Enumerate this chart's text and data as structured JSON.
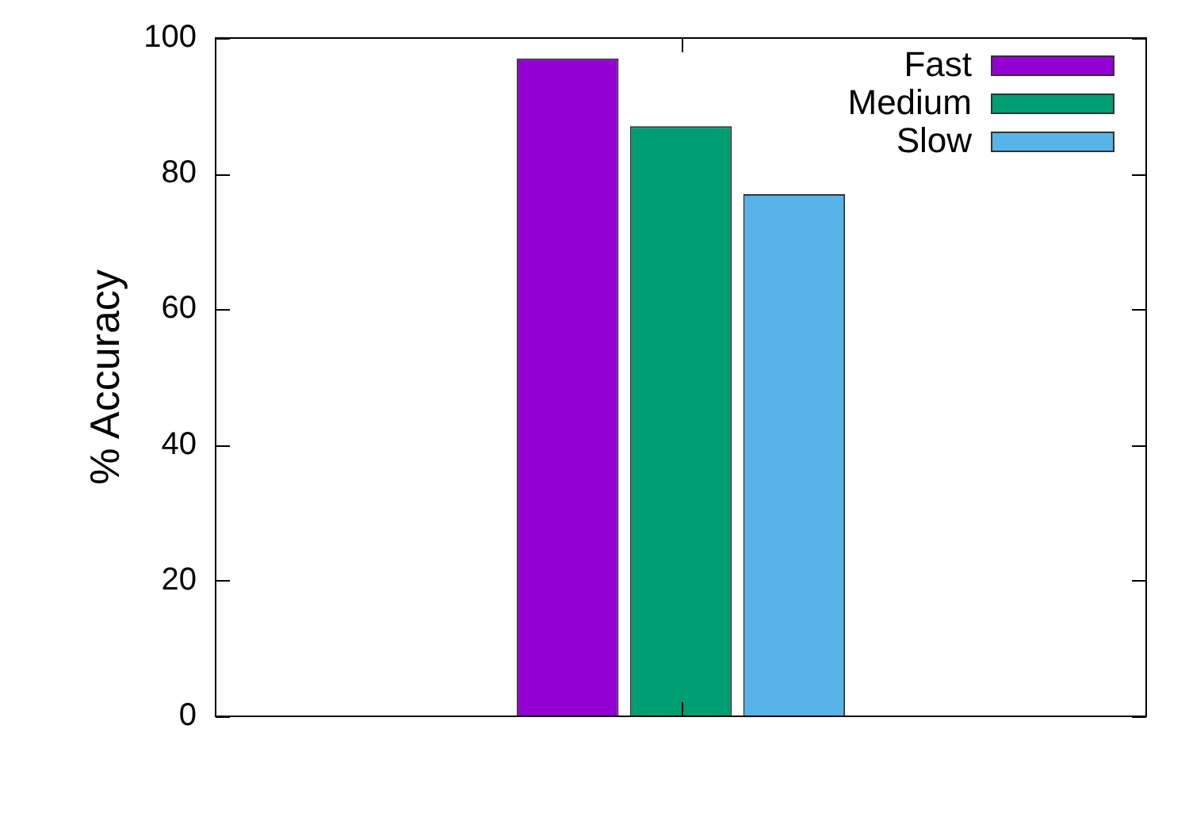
{
  "chart_data": {
    "type": "bar",
    "ylabel": "% Accuracy",
    "categories": [
      null
    ],
    "series": [
      {
        "name": "Fast",
        "color": "#9400d3",
        "values": [
          97
        ]
      },
      {
        "name": "Medium",
        "color": "#009e73",
        "values": [
          87
        ]
      },
      {
        "name": "Slow",
        "color": "#56b4e9",
        "values": [
          77
        ]
      }
    ],
    "ylim": [
      0,
      100
    ],
    "yticks": [
      0,
      20,
      40,
      60,
      80,
      100
    ],
    "legend": "top right"
  }
}
